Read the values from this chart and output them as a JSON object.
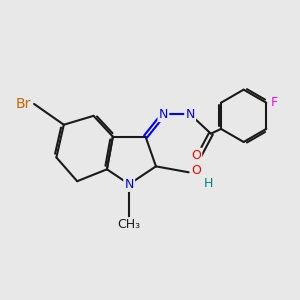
{
  "background_color": "#e8e8e8",
  "bond_color": "#1a1a1a",
  "atom_colors": {
    "N": "#0000ff",
    "O": "#ff0000",
    "Br": "#cc6600",
    "F": "#ff00ff",
    "H": "#008080"
  },
  "font_size": 9,
  "figsize": [
    3.0,
    3.0
  ],
  "dpi": 100
}
